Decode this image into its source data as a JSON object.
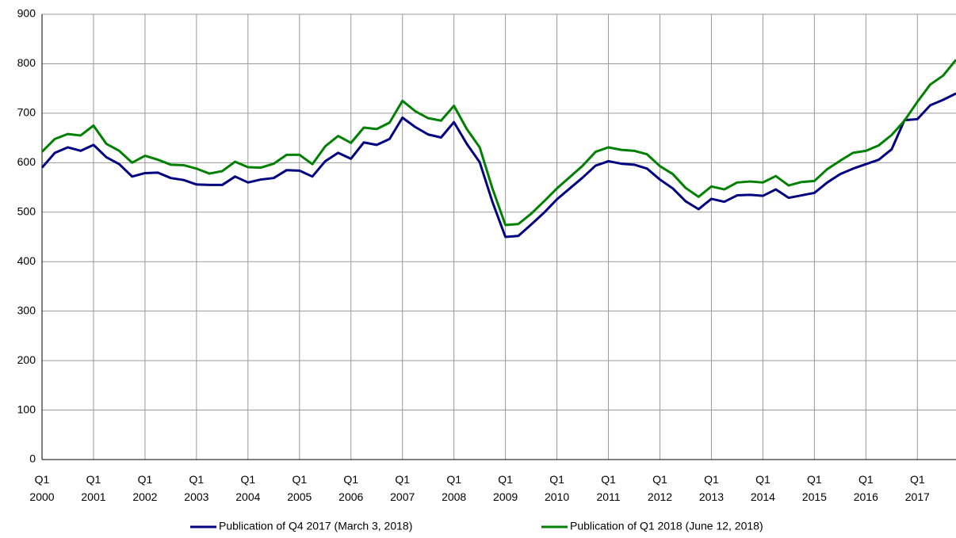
{
  "chart_data": {
    "type": "line",
    "categories": [
      "Q1 2000",
      null,
      null,
      null,
      "Q1 2001",
      null,
      null,
      null,
      "Q1 2002",
      null,
      null,
      null,
      "Q1 2003",
      null,
      null,
      null,
      "Q1 2004",
      null,
      null,
      null,
      "Q1 2005",
      null,
      null,
      null,
      "Q1 2006",
      null,
      null,
      null,
      "Q1 2007",
      null,
      null,
      null,
      "Q1 2008",
      null,
      null,
      null,
      "Q1 2009",
      null,
      null,
      null,
      "Q1 2010",
      null,
      null,
      null,
      "Q1 2011",
      null,
      null,
      null,
      "Q1 2012",
      null,
      null,
      null,
      "Q1 2013",
      null,
      null,
      null,
      "Q1 2014",
      null,
      null,
      null,
      "Q1 2015",
      null,
      null,
      null,
      "Q1 2016",
      null,
      null,
      null,
      "Q1 2017",
      null,
      null,
      null
    ],
    "series": [
      {
        "name": "Publication of Q4 2017 (March 3, 2018)",
        "color": "#000080",
        "values": [
          590,
          620,
          631,
          624,
          636,
          611,
          597,
          572,
          579,
          580,
          569,
          565,
          556,
          555,
          555,
          572,
          560,
          566,
          569,
          585,
          584,
          572,
          603,
          620,
          608,
          641,
          636,
          648,
          691,
          672,
          657,
          651,
          682,
          638,
          601,
          520,
          450,
          452,
          475,
          499,
          526,
          548,
          570,
          594,
          603,
          598,
          596,
          588,
          566,
          548,
          522,
          506,
          527,
          521,
          534,
          535,
          533,
          546,
          529,
          534,
          539,
          560,
          577,
          588,
          597,
          606,
          627,
          686,
          688,
          716,
          727,
          740
        ]
      },
      {
        "name": "Publication of Q1 2018 (June 12, 2018)",
        "color": "#008000",
        "values": [
          622,
          648,
          658,
          655,
          675,
          638,
          624,
          600,
          614,
          606,
          596,
          595,
          588,
          578,
          583,
          602,
          591,
          590,
          598,
          616,
          616,
          597,
          633,
          654,
          640,
          671,
          668,
          681,
          725,
          704,
          690,
          685,
          715,
          668,
          631,
          547,
          474,
          476,
          497,
          522,
          548,
          571,
          594,
          622,
          631,
          626,
          624,
          617,
          593,
          577,
          549,
          531,
          552,
          546,
          560,
          562,
          560,
          573,
          554,
          561,
          563,
          587,
          604,
          620,
          624,
          635,
          656,
          685,
          723,
          758,
          776,
          808
        ]
      }
    ],
    "ylim": [
      0,
      900
    ],
    "yticks": [
      0,
      100,
      200,
      300,
      400,
      500,
      600,
      700,
      800,
      900
    ],
    "grid": true,
    "legend": "bottom"
  }
}
